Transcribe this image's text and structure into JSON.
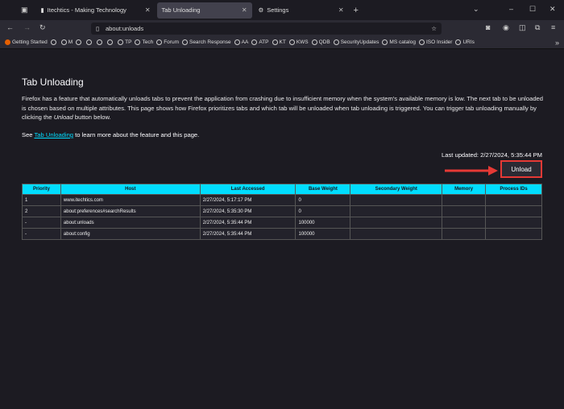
{
  "browser": {
    "tabs": [
      {
        "label": "Itechtics - Making Technology"
      },
      {
        "label": "Tab Unloading",
        "active": true
      },
      {
        "label": "Settings"
      }
    ],
    "url": "about:unloads",
    "bookmarks": [
      "Getting Started",
      "",
      "M",
      "",
      "",
      "",
      "",
      "TP",
      "Tech",
      "Forum",
      "Search Response",
      "AA",
      "ATP",
      "KT",
      "KWS",
      "QDB",
      "SecurityUpdates",
      "MS catalog",
      "ISO Insider",
      "URIs"
    ]
  },
  "page": {
    "title": "Tab Unloading",
    "description_parts": [
      "Firefox has a feature that automatically unloads tabs to prevent the application from crashing due to insufficient memory when the system's available memory is low. The next tab to be unloaded is chosen based on multiple attributes. This page shows how Firefox prioritizes tabs and which tab will be unloaded when tab unloading is triggered. You can trigger tab unloading manually by clicking the ",
      "Unload",
      " button below."
    ],
    "see_prefix": "See ",
    "see_link": "Tab Unloading",
    "see_suffix": " to learn more about the feature and this page.",
    "last_updated": "Last updated: 2/27/2024, 5:35:44 PM",
    "unload_label": "Unload",
    "table": {
      "headers": [
        "Priority",
        "Host",
        "Last Accessed",
        "Base Weight",
        "Secondary Weight",
        "Memory",
        "Process IDs"
      ],
      "rows": [
        [
          "1",
          "www.itechtics.com",
          "2/27/2024, 5:17:17 PM",
          "0",
          "",
          "",
          ""
        ],
        [
          "2",
          "about:preferences#searchResults",
          "2/27/2024, 5:35:30 PM",
          "0",
          "",
          "",
          ""
        ],
        [
          "-",
          "about:unloads",
          "2/27/2024, 5:35:44 PM",
          "100000",
          "",
          "",
          ""
        ],
        [
          "-",
          "about:config",
          "2/27/2024, 5:35:44 PM",
          "100000",
          "",
          "",
          ""
        ]
      ]
    }
  },
  "colors": {
    "accent": "#00ddff",
    "highlight": "#e53935"
  }
}
